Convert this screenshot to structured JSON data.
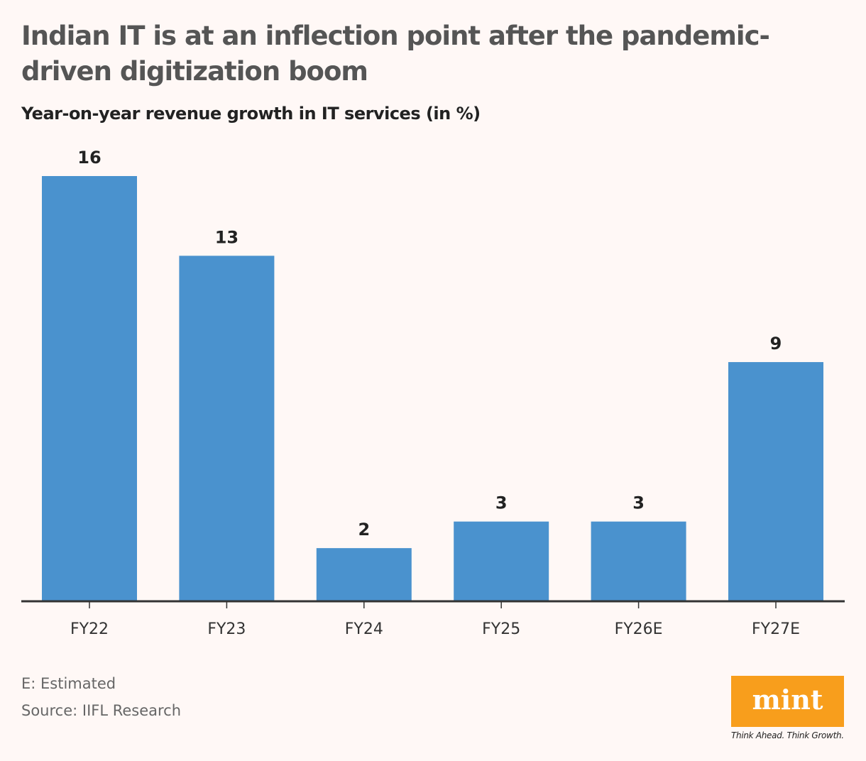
{
  "title": "Indian IT is at an inflection point after the pandemic-driven digitization boom",
  "subtitle": "Year-on-year revenue growth in IT services (in %)",
  "notes": [
    "E: Estimated",
    "Source: IIFL Research"
  ],
  "logo": {
    "text": "mint",
    "tagline": "Think Ahead. Think Growth.",
    "color": "#f89e1c"
  },
  "chart_data": {
    "type": "bar",
    "title": "",
    "xlabel": "",
    "ylabel": "",
    "categories": [
      "FY22",
      "FY23",
      "FY24",
      "FY25",
      "FY26E",
      "FY27E"
    ],
    "values": [
      16,
      13,
      2,
      3,
      3,
      9
    ],
    "data_labels": [
      "16",
      "13",
      "2",
      "3",
      "3",
      "9"
    ],
    "ylim": [
      0,
      16
    ],
    "grid": false,
    "bar_color": "#4a92ce"
  }
}
